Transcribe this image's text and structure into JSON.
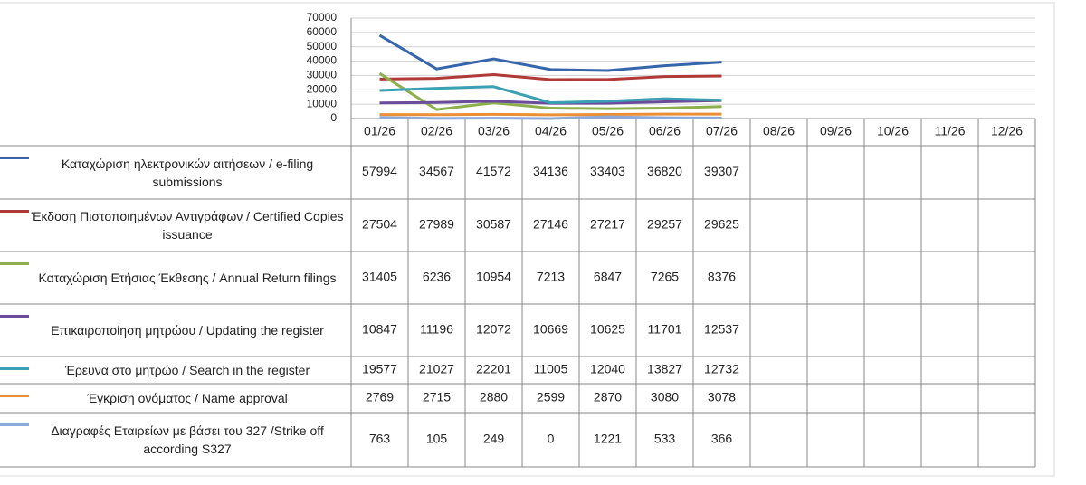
{
  "chart_data": {
    "type": "line",
    "categories": [
      "01/26",
      "02/26",
      "03/26",
      "04/26",
      "05/26",
      "06/26",
      "07/26",
      "08/26",
      "09/26",
      "10/26",
      "11/26",
      "12/26"
    ],
    "ylim": [
      0,
      70000
    ],
    "yticks": [
      0,
      10000,
      20000,
      30000,
      40000,
      50000,
      60000,
      70000
    ],
    "grid": true,
    "series": [
      {
        "name": "Καταχώριση ηλεκτρονικών αιτήσεων / e-filing submissions",
        "color": "#3566ab",
        "values": [
          57994,
          34567,
          41572,
          34136,
          33403,
          36820,
          39307,
          null,
          null,
          null,
          null,
          null
        ]
      },
      {
        "name": "Έκδοση Πιστοποιημένων Αντιγράφων / Certified Copies issuance",
        "color": "#b03a37",
        "values": [
          27504,
          27989,
          30587,
          27146,
          27217,
          29257,
          29625,
          null,
          null,
          null,
          null,
          null
        ]
      },
      {
        "name": "Καταχώριση Ετήσιας Έκθεσης / Annual Return filings",
        "color": "#8db04c",
        "values": [
          31405,
          6236,
          10954,
          7213,
          6847,
          7265,
          8376,
          null,
          null,
          null,
          null,
          null
        ]
      },
      {
        "name": "Επικαιροποίηση μητρώου / Updating the register",
        "color": "#6b4c9a",
        "values": [
          10847,
          11196,
          12072,
          10669,
          10625,
          11701,
          12537,
          null,
          null,
          null,
          null,
          null
        ]
      },
      {
        "name": "Έρευνα στο μητρώο / Search in the register",
        "color": "#3aa0b4",
        "values": [
          19577,
          21027,
          22201,
          11005,
          12040,
          13827,
          12732,
          null,
          null,
          null,
          null,
          null
        ]
      },
      {
        "name": "Έγκριση ονόματος / Name approval",
        "color": "#ea8f35",
        "values": [
          2769,
          2715,
          2880,
          2599,
          2870,
          3080,
          3078,
          null,
          null,
          null,
          null,
          null
        ]
      },
      {
        "name": "Διαγραφές Εταιρείων με βάσει του 327 /Strike off according S327",
        "color": "#8fa9d8",
        "values": [
          763,
          105,
          249,
          0,
          1221,
          533,
          366,
          null,
          null,
          null,
          null,
          null
        ]
      }
    ]
  }
}
